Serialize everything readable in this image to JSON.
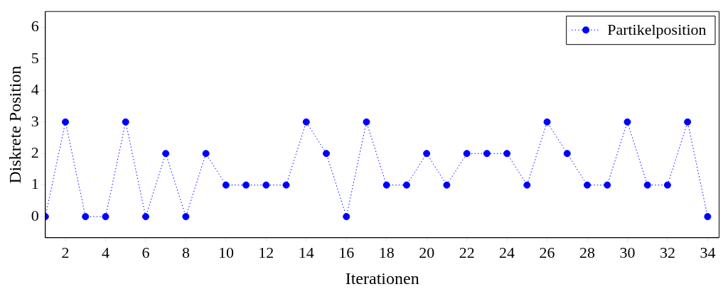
{
  "chart_data": {
    "type": "line",
    "xlabel": "Iterationen",
    "ylabel": "Diskrete Position",
    "x": [
      1,
      2,
      3,
      4,
      5,
      6,
      7,
      8,
      9,
      10,
      11,
      12,
      13,
      14,
      15,
      16,
      17,
      18,
      19,
      20,
      21,
      22,
      23,
      24,
      25,
      26,
      27,
      28,
      29,
      30,
      31,
      32,
      33,
      34
    ],
    "series": [
      {
        "name": "Partikelposition",
        "color": "#0000ff",
        "values": [
          0,
          3,
          0,
          0,
          3,
          0,
          2,
          0,
          2,
          1,
          1,
          1,
          1,
          3,
          2,
          0,
          3,
          1,
          1,
          2,
          1,
          2,
          2,
          2,
          1,
          3,
          2,
          1,
          1,
          3,
          1,
          1,
          3,
          0
        ]
      }
    ],
    "xlim": [
      1,
      34.57
    ],
    "xticks": [
      2,
      4,
      6,
      8,
      10,
      12,
      14,
      16,
      18,
      20,
      22,
      24,
      26,
      28,
      30,
      32,
      34
    ],
    "ylim": [
      -0.67,
      6.5
    ],
    "yticks": [
      0,
      1,
      2,
      3,
      4,
      5,
      6
    ],
    "grid": false,
    "legend": "top right",
    "marker": "circle",
    "line_style": "dotted"
  }
}
